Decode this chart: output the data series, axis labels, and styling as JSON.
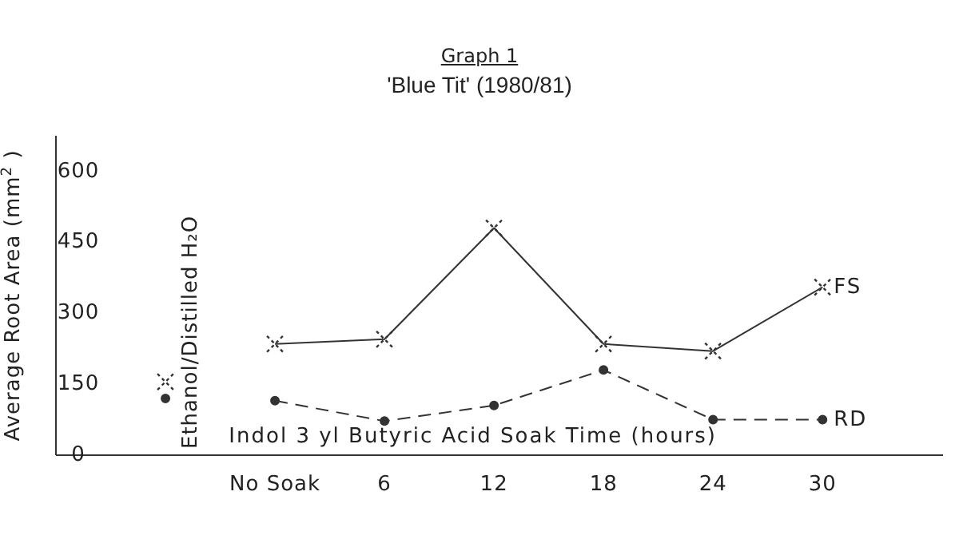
{
  "chart_data": {
    "type": "line",
    "title": "Graph 1",
    "subtitle": "'Blue Tit' (1980/81)",
    "xlabel": "Indol 3 yl Butyric Acid Soak Time (hours)",
    "ylabel": "Average Root Area (mm$^{2}$)",
    "categories": [
      "Ethanol/Distilled H₂O",
      "No Soak",
      "6",
      "12",
      "18",
      "24",
      "30"
    ],
    "series": [
      {
        "name": "FS",
        "color": "#333333",
        "marker": "cross",
        "line_style": "solid",
        "values": [
          null,
          235,
          245,
          480,
          235,
          220,
          355
        ]
      },
      {
        "name": "RD",
        "color": "#333333",
        "marker": "circle",
        "line_style": "dashed",
        "values": [
          null,
          115,
          72,
          105,
          180,
          75,
          75
        ]
      },
      {
        "type": "scatter",
        "color": "#333333",
        "marker": "circle",
        "values": [
          120,
          null,
          null,
          null,
          null,
          null,
          null
        ]
      },
      {
        "type": "scatter",
        "color": "#333333",
        "marker": "cross",
        "values": [
          155,
          null,
          null,
          null,
          null,
          null,
          null
        ]
      }
    ],
    "ylim": [
      0,
      675
    ],
    "yticks": [
      0,
      150,
      300,
      450,
      600
    ],
    "grid": false,
    "legend": false
  }
}
